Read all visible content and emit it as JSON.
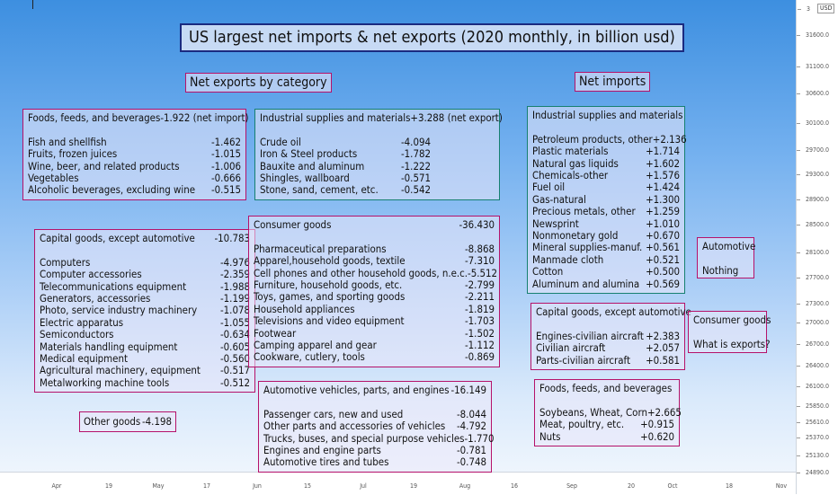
{
  "title": "US largest net imports & net exports (2020 monthly, in billion usd)",
  "net_exports_label": "Net exports by category",
  "net_imports_label": "Net imports",
  "currency": "USD",
  "y_ticks": [
    "31600.0",
    "31100.0",
    "30600.0",
    "30100.0",
    "29700.0",
    "29300.0",
    "28900.0",
    "28500.0",
    "28100.0",
    "27700.0",
    "27300.0",
    "27000.0",
    "26700.0",
    "26400.0",
    "26100.0",
    "25850.0",
    "25610.0",
    "25370.0",
    "25130.0",
    "24890.0"
  ],
  "y_top_fragment": "3",
  "x_ticks": [
    "Apr",
    "19",
    "May",
    "17",
    "Jun",
    "15",
    "Jul",
    "19",
    "Aug",
    "16",
    "Sep",
    "20",
    "Oct",
    "18",
    "Nov"
  ],
  "exports": {
    "foods": {
      "header": "Foods, feeds, and beverages",
      "header_value": "-1.922 (net import)",
      "items": [
        {
          "n": "Fish and shellfish",
          "v": "-1.462"
        },
        {
          "n": "Fruits, frozen juices",
          "v": "-1.015"
        },
        {
          "n": "Wine, beer, and related products",
          "v": "-1.006"
        },
        {
          "n": "Vegetables",
          "v": "-0.666"
        },
        {
          "n": "Alcoholic beverages, excluding wine",
          "v": "-0.515"
        }
      ]
    },
    "industrial": {
      "header": "Industrial supplies and materials",
      "header_value": "+3.288 (net export)",
      "items": [
        {
          "n": "Crude oil",
          "v": "-4.094"
        },
        {
          "n": "Iron & Steel products",
          "v": "-1.782"
        },
        {
          "n": "Bauxite and aluminum",
          "v": "-1.222"
        },
        {
          "n": "Shingles, wallboard",
          "v": "-0.571"
        },
        {
          "n": "Stone, sand, cement, etc.",
          "v": "-0.542"
        }
      ]
    },
    "capital": {
      "header": "Capital goods, except automotive",
      "header_value": "-10.783",
      "items": [
        {
          "n": "Computers",
          "v": "-4.976"
        },
        {
          "n": "Computer accessories",
          "v": "-2.359"
        },
        {
          "n": "Telecommunications equipment",
          "v": "-1.988"
        },
        {
          "n": "Generators, accessories",
          "v": "-1.199"
        },
        {
          "n": "Photo, service industry machinery",
          "v": "-1.078"
        },
        {
          "n": "Electric apparatus",
          "v": "-1.055"
        },
        {
          "n": "Semiconductors",
          "v": "-0.634"
        },
        {
          "n": "Materials handling equipment",
          "v": "-0.605"
        },
        {
          "n": "Medical equipment",
          "v": "-0.560"
        },
        {
          "n": "Agricultural machinery, equipment",
          "v": "-0.517"
        },
        {
          "n": "Metalworking machine tools",
          "v": "-0.512"
        }
      ]
    },
    "consumer": {
      "header": "Consumer goods",
      "header_value": "-36.430",
      "items": [
        {
          "n": "Pharmaceutical preparations",
          "v": "-8.868"
        },
        {
          "n": "Apparel,household goods, textile",
          "v": "-7.310"
        },
        {
          "n": "Cell phones and other household goods, n.e.c.",
          "v": "-5.512"
        },
        {
          "n": "Furniture, household goods, etc.",
          "v": "-2.799"
        },
        {
          "n": "Toys, games, and sporting goods",
          "v": "-2.211"
        },
        {
          "n": "Household appliances",
          "v": "-1.819"
        },
        {
          "n": "Televisions and video equipment",
          "v": "-1.703"
        },
        {
          "n": "Footwear",
          "v": "-1.502"
        },
        {
          "n": "Camping apparel and gear",
          "v": "-1.112"
        },
        {
          "n": "Cookware, cutlery, tools",
          "v": "-0.869"
        }
      ]
    },
    "automotive": {
      "header": "Automotive vehicles, parts, and engines",
      "header_value": "-16.149",
      "items": [
        {
          "n": "Passenger cars, new and used",
          "v": "-8.044"
        },
        {
          "n": "Other parts and accessories of vehicles",
          "v": "-4.792"
        },
        {
          "n": "Trucks, buses, and special purpose vehicles",
          "v": "-1.770"
        },
        {
          "n": "Engines and engine parts",
          "v": "-0.781"
        },
        {
          "n": "Automotive tires and tubes",
          "v": "-0.748"
        }
      ]
    },
    "other": {
      "label": "Other goods",
      "value": "-4.198"
    }
  },
  "imports": {
    "industrial": {
      "header": "Industrial supplies and materials",
      "items": [
        {
          "n": "Petroleum products, other",
          "v": "+2.136"
        },
        {
          "n": "Plastic materials",
          "v": "+1.714"
        },
        {
          "n": "Natural gas liquids",
          "v": "+1.602"
        },
        {
          "n": "Chemicals-other",
          "v": "+1.576"
        },
        {
          "n": "Fuel oil",
          "v": "+1.424"
        },
        {
          "n": "Gas-natural",
          "v": "+1.300"
        },
        {
          "n": "Precious metals, other",
          "v": "+1.259"
        },
        {
          "n": "Newsprint",
          "v": "+1.010"
        },
        {
          "n": "Nonmonetary gold",
          "v": "+0.670"
        },
        {
          "n": "Mineral supplies-manuf.",
          "v": "+0.561"
        },
        {
          "n": "Manmade cloth",
          "v": "+0.521"
        },
        {
          "n": "Cotton",
          "v": "+0.500"
        },
        {
          "n": "Aluminum and alumina",
          "v": "+0.569"
        }
      ]
    },
    "capital": {
      "header": "Capital goods, except automotive",
      "items": [
        {
          "n": "Engines-civilian aircraft",
          "v": "+2.383"
        },
        {
          "n": "Civilian aircraft",
          "v": "+2.057"
        },
        {
          "n": "Parts-civilian aircraft",
          "v": "+0.581"
        }
      ]
    },
    "foods": {
      "header": "Foods, feeds, and beverages",
      "items": [
        {
          "n": "Soybeans, Wheat, Corn",
          "v": "+2.665"
        },
        {
          "n": "Meat, poultry, etc.",
          "v": "+0.915"
        },
        {
          "n": "Nuts",
          "v": "+0.620"
        }
      ]
    },
    "automotive": {
      "header": "Automotive",
      "note": "Nothing"
    },
    "consumer": {
      "header": "Consumer goods",
      "note": "What is exports?"
    }
  }
}
